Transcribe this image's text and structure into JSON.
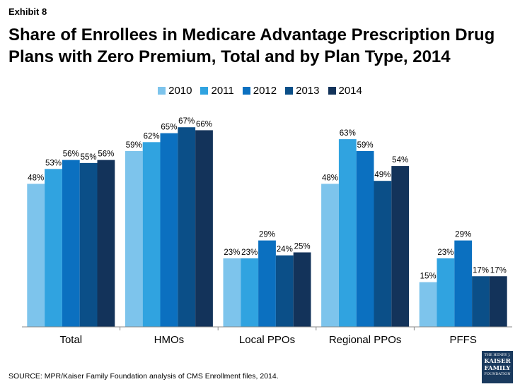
{
  "header": {
    "exhibit": "Exhibit 8",
    "title": "Share of Enrollees in Medicare Advantage Prescription Drug Plans with Zero Premium, Total and by Plan Type, 2014"
  },
  "footer": {
    "source": "SOURCE:  MPR/Kaiser Family Foundation analysis of CMS Enrollment files, 2014.",
    "logo_line1": "THE HENRY J.",
    "logo_line2": "KAISER",
    "logo_line3": "FAMILY",
    "logo_line4": "FOUNDATION"
  },
  "chart_data": {
    "type": "bar",
    "title": "Share of Enrollees in Medicare Advantage Prescription Drug Plans with Zero Premium, Total and by Plan Type, 2014",
    "xlabel": "",
    "ylabel": "",
    "ylim": [
      0,
      75
    ],
    "grid": false,
    "legend_position": "top",
    "categories": [
      "Total",
      "HMOs",
      "Local PPOs",
      "Regional PPOs",
      "PFFS"
    ],
    "series": [
      {
        "name": "2010",
        "color": "#7dc4ec",
        "values": [
          48,
          59,
          23,
          48,
          15
        ]
      },
      {
        "name": "2011",
        "color": "#30a3e0",
        "values": [
          53,
          62,
          23,
          63,
          23
        ]
      },
      {
        "name": "2012",
        "color": "#0b70c0",
        "values": [
          56,
          65,
          29,
          59,
          29
        ]
      },
      {
        "name": "2013",
        "color": "#0b4f88",
        "values": [
          55,
          67,
          24,
          49,
          17
        ]
      },
      {
        "name": "2014",
        "color": "#13335a",
        "values": [
          56,
          66,
          25,
          54,
          17
        ]
      }
    ],
    "value_suffix": "%"
  }
}
